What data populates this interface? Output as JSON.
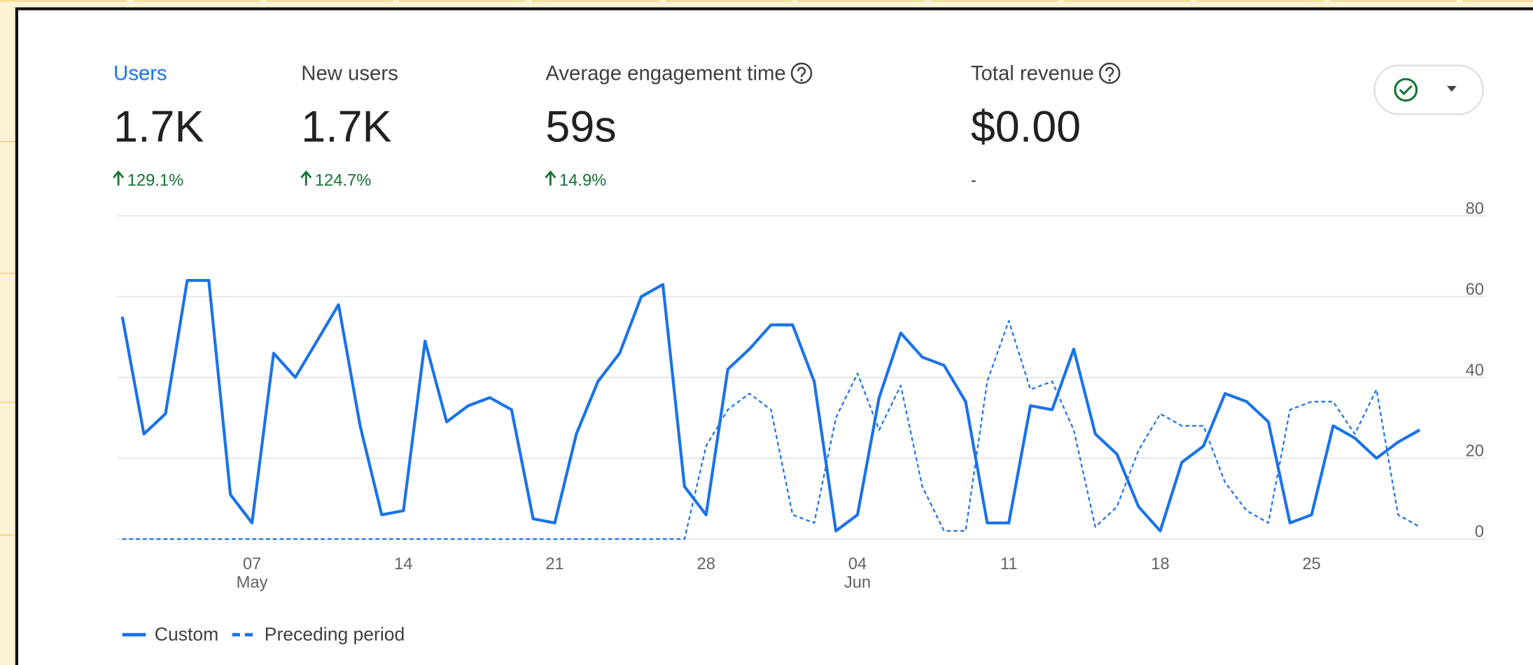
{
  "metrics": [
    {
      "label": "Users",
      "value": "1.7K",
      "change": "129.1%",
      "trend": "up",
      "help": false,
      "selected": true
    },
    {
      "label": "New users",
      "value": "1.7K",
      "change": "124.7%",
      "trend": "up",
      "help": false,
      "selected": false
    },
    {
      "label": "Average engagement time",
      "value": "59s",
      "change": "14.9%",
      "trend": "up",
      "help": true,
      "selected": false
    },
    {
      "label": "Total revenue",
      "value": "$0.00",
      "change": "-",
      "trend": null,
      "help": true,
      "selected": false
    }
  ],
  "chart_data": {
    "type": "line",
    "categories": [
      null,
      null,
      null,
      null,
      null,
      null,
      "07 May",
      null,
      null,
      null,
      null,
      null,
      null,
      "14",
      null,
      null,
      null,
      null,
      null,
      null,
      "21",
      null,
      null,
      null,
      null,
      null,
      null,
      "28",
      null,
      null,
      null,
      null,
      null,
      null,
      "04 Jun",
      null,
      null,
      null,
      null,
      null,
      null,
      "11",
      null,
      null,
      null,
      null,
      null,
      null,
      "18",
      null,
      null,
      null,
      null,
      null,
      null,
      "25",
      null,
      null,
      null,
      null,
      null
    ],
    "series": [
      {
        "name": "Custom",
        "color": "#1a73e8",
        "style": "solid",
        "values": [
          55,
          26,
          31,
          64,
          64,
          11,
          4,
          46,
          40,
          49,
          58,
          28,
          6,
          7,
          49,
          29,
          33,
          35,
          32,
          5,
          4,
          26,
          39,
          46,
          60,
          63,
          13,
          6,
          42,
          47,
          53,
          53,
          39,
          2,
          6,
          35,
          51,
          45,
          43,
          34,
          4,
          4,
          33,
          32,
          47,
          26,
          21,
          8,
          2,
          19,
          23,
          36,
          34,
          29,
          4,
          6,
          28,
          25,
          20,
          24,
          27
        ]
      },
      {
        "name": "Preceding period",
        "color": "#1a73e8",
        "style": "dashed",
        "values": [
          0,
          0,
          0,
          0,
          0,
          0,
          0,
          0,
          0,
          0,
          0,
          0,
          0,
          0,
          0,
          0,
          0,
          0,
          0,
          0,
          0,
          0,
          0,
          0,
          0,
          0,
          0,
          23,
          32,
          36,
          32,
          6,
          4,
          30,
          41,
          27,
          38,
          13,
          2,
          2,
          39,
          54,
          37,
          39,
          27,
          3,
          8,
          22,
          31,
          28,
          28,
          14,
          7,
          4,
          32,
          34,
          34,
          26,
          37,
          6,
          3
        ]
      }
    ],
    "ylim": [
      0,
      80
    ],
    "yticks": [
      0,
      20,
      40,
      60,
      80
    ],
    "grid": true
  }
}
